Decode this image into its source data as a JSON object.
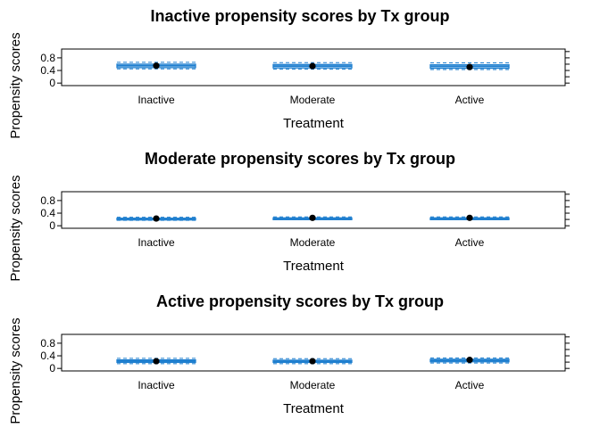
{
  "chart_data": [
    {
      "type": "boxplot",
      "title": "Inactive  propensity scores by Tx group",
      "xlabel": "Treatment",
      "ylabel": "Propensity scores",
      "categories": [
        "Inactive",
        "Moderate",
        "Active"
      ],
      "yticks": [
        0.0,
        0.4,
        0.8
      ],
      "ylim": [
        -0.08,
        1.08
      ],
      "boxes": [
        {
          "category": "Inactive",
          "whisker_low": 0.45,
          "q1": 0.49,
          "median": 0.55,
          "q3": 0.6,
          "whisker_high": 0.66,
          "mean": 0.55
        },
        {
          "category": "Moderate",
          "whisker_low": 0.44,
          "q1": 0.48,
          "median": 0.54,
          "q3": 0.59,
          "whisker_high": 0.65,
          "mean": 0.54
        },
        {
          "category": "Active",
          "whisker_low": 0.43,
          "q1": 0.47,
          "median": 0.53,
          "q3": 0.58,
          "whisker_high": 0.64,
          "mean": 0.51
        }
      ]
    },
    {
      "type": "boxplot",
      "title": "Moderate  propensity scores by Tx group",
      "xlabel": "Treatment",
      "ylabel": "Propensity scores",
      "categories": [
        "Inactive",
        "Moderate",
        "Active"
      ],
      "yticks": [
        0.0,
        0.4,
        0.8
      ],
      "ylim": [
        -0.08,
        1.08
      ],
      "boxes": [
        {
          "category": "Inactive",
          "whisker_low": 0.17,
          "q1": 0.2,
          "median": 0.22,
          "q3": 0.24,
          "whisker_high": 0.27,
          "mean": 0.23
        },
        {
          "category": "Moderate",
          "whisker_low": 0.19,
          "q1": 0.21,
          "median": 0.23,
          "q3": 0.25,
          "whisker_high": 0.28,
          "mean": 0.25
        },
        {
          "category": "Active",
          "whisker_low": 0.19,
          "q1": 0.21,
          "median": 0.23,
          "q3": 0.25,
          "whisker_high": 0.28,
          "mean": 0.25
        }
      ]
    },
    {
      "type": "boxplot",
      "title": "Active  propensity scores by Tx group",
      "xlabel": "Treatment",
      "ylabel": "Propensity scores",
      "categories": [
        "Inactive",
        "Moderate",
        "Active"
      ],
      "yticks": [
        0.0,
        0.4,
        0.8
      ],
      "ylim": [
        -0.08,
        1.08
      ],
      "boxes": [
        {
          "category": "Inactive",
          "whisker_low": 0.15,
          "q1": 0.19,
          "median": 0.23,
          "q3": 0.27,
          "whisker_high": 0.32,
          "mean": 0.23
        },
        {
          "category": "Moderate",
          "whisker_low": 0.15,
          "q1": 0.19,
          "median": 0.23,
          "q3": 0.26,
          "whisker_high": 0.31,
          "mean": 0.23
        },
        {
          "category": "Active",
          "whisker_low": 0.17,
          "q1": 0.21,
          "median": 0.25,
          "q3": 0.29,
          "whisker_high": 0.33,
          "mean": 0.27
        }
      ]
    }
  ],
  "colors": {
    "box_border": "#1f7fcf",
    "whisker": "#1f7fcf",
    "mean_marker": "#000000",
    "axis": "#000000"
  }
}
